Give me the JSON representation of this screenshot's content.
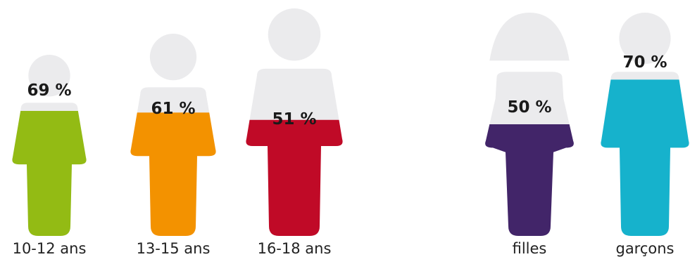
{
  "chart_data": {
    "type": "bar",
    "categories": [
      "10-12 ans",
      "13-15 ans",
      "16-18 ans",
      "filles",
      "garçons"
    ],
    "values": [
      69,
      61,
      51,
      50,
      70
    ],
    "value_labels": [
      "69 %",
      "61 %",
      "51 %",
      "50 %",
      "70 %"
    ],
    "title": "",
    "xlabel": "",
    "ylabel": "",
    "ylim": [
      0,
      100
    ],
    "groups": [
      {
        "members": [
          "10-12 ans",
          "13-15 ans",
          "16-18 ans"
        ]
      },
      {
        "members": [
          "filles",
          "garçons"
        ]
      }
    ],
    "colors": [
      "#93bb14",
      "#f39200",
      "#c00a27",
      "#422569",
      "#16b2cc"
    ],
    "empty_color": "#ebebed",
    "figure_shapes": [
      "boy",
      "boy",
      "boy",
      "girl",
      "boy"
    ],
    "legend": "none",
    "grid": false
  }
}
